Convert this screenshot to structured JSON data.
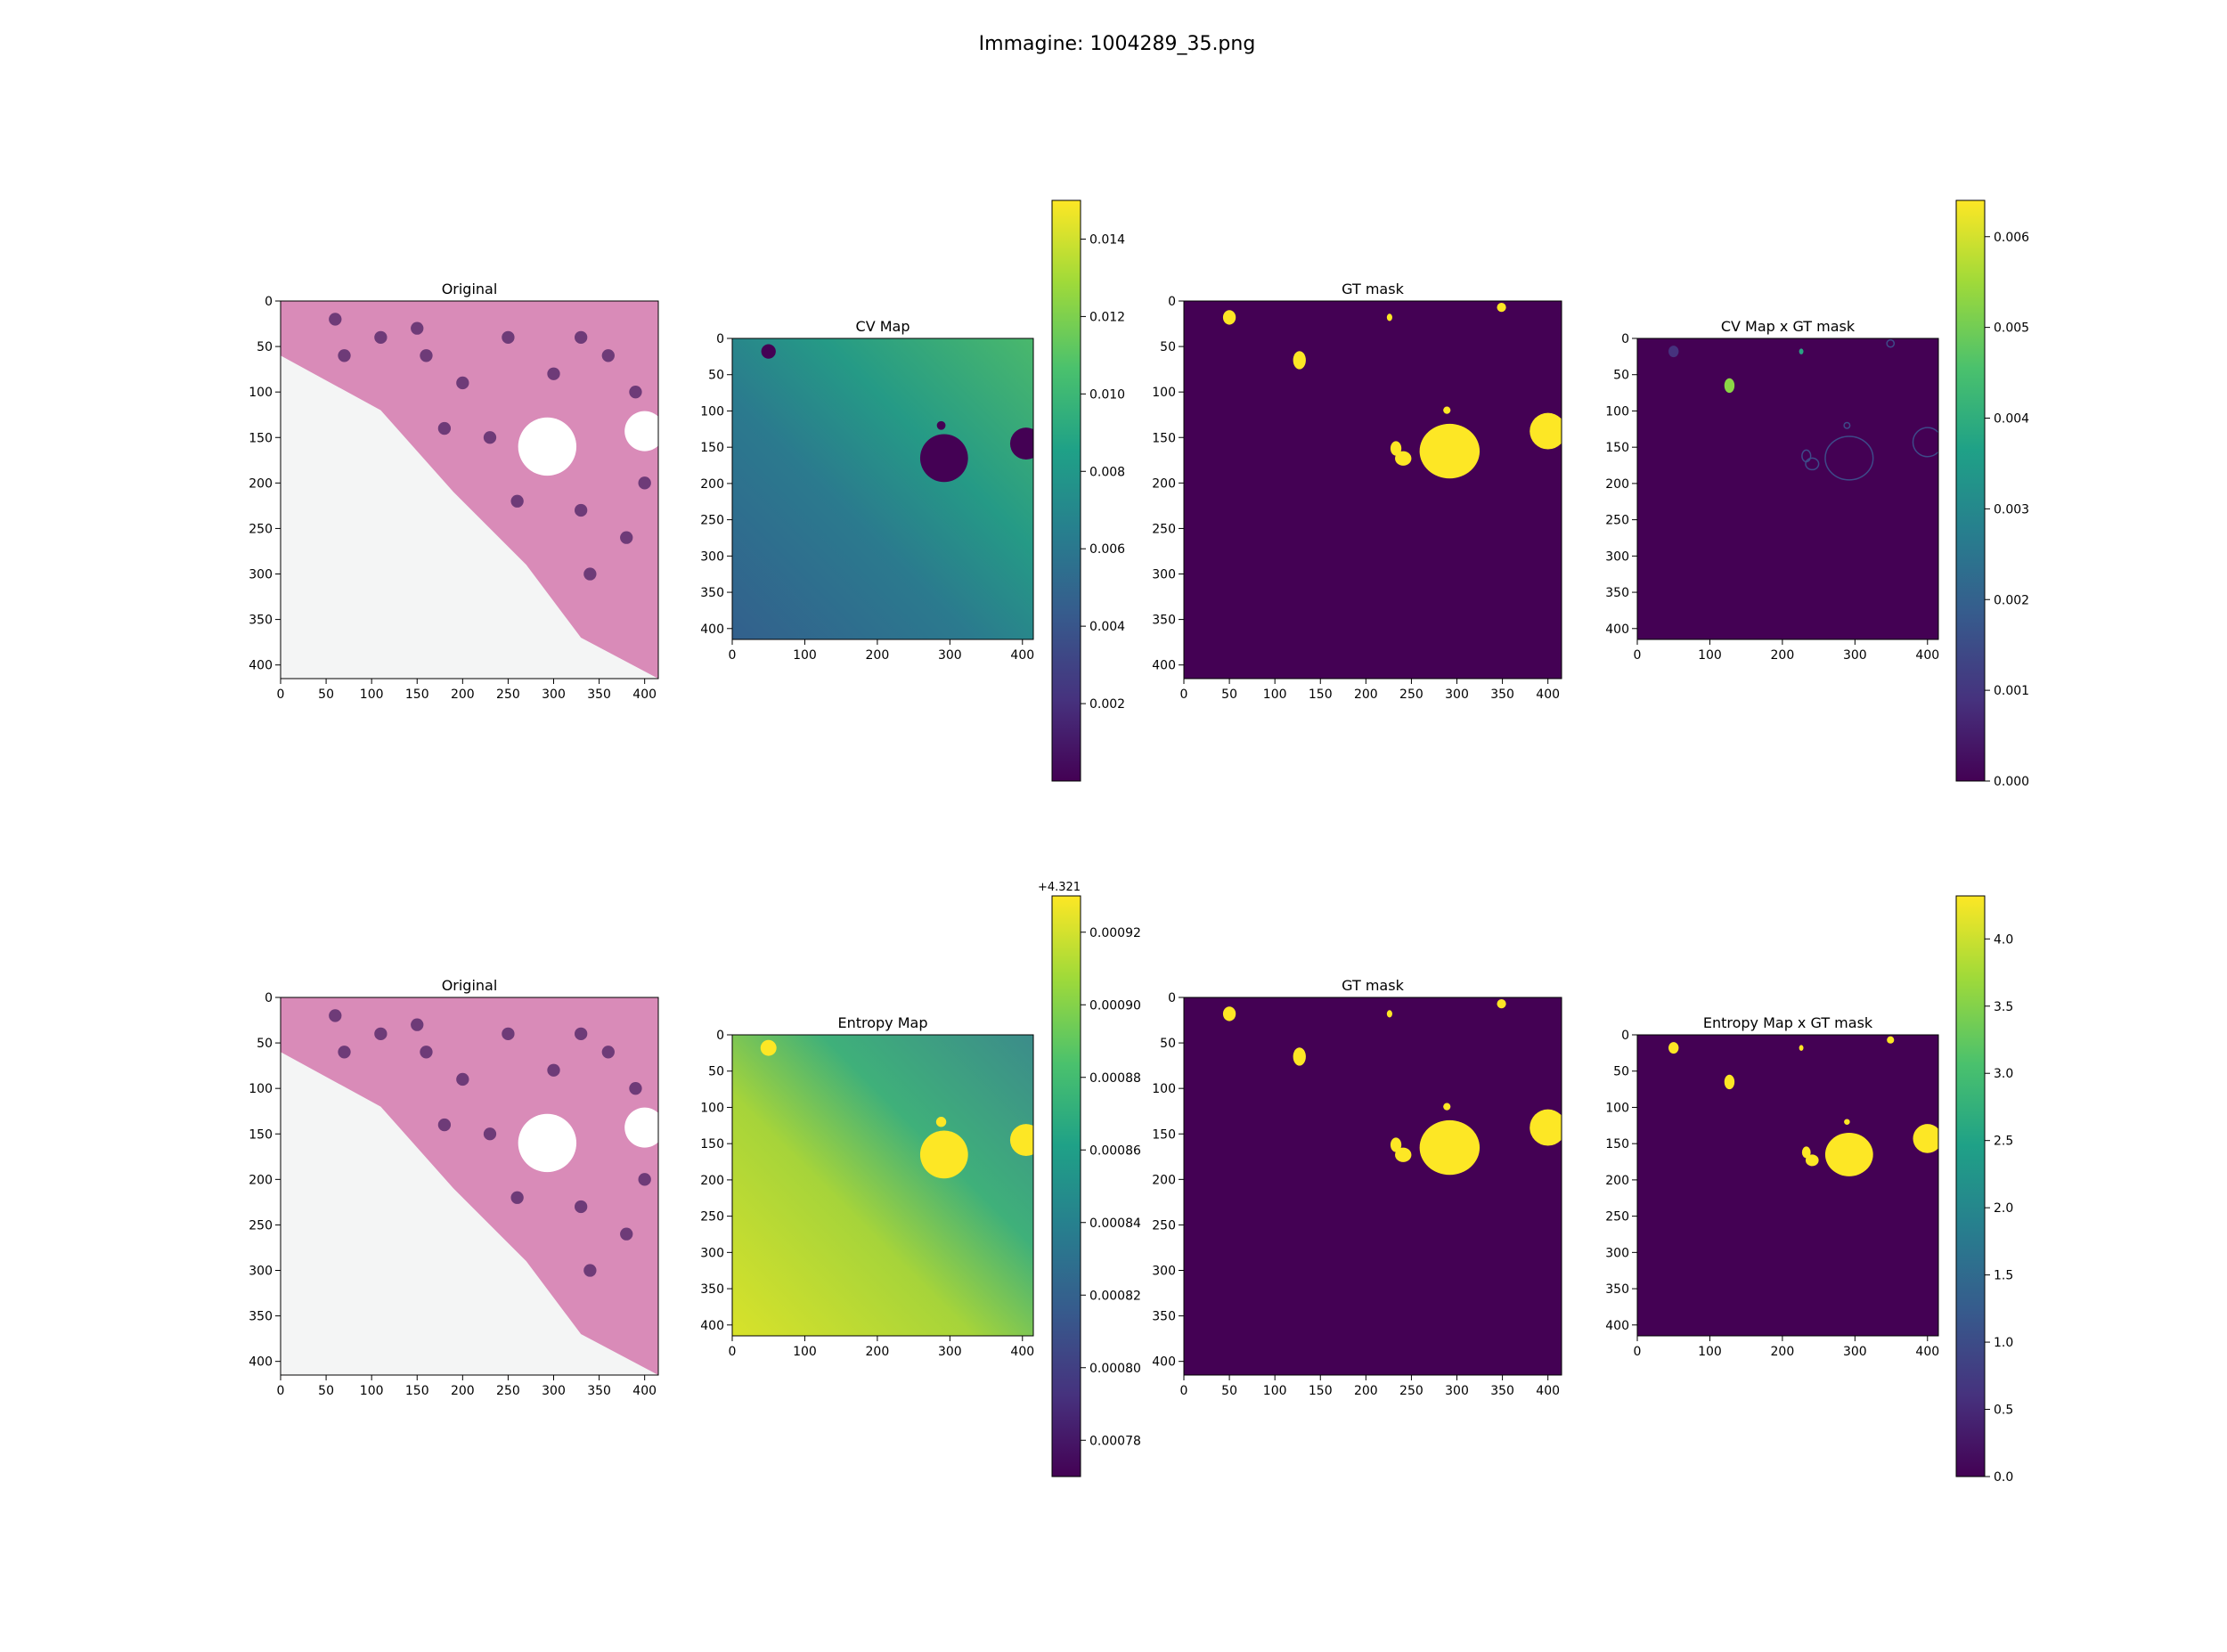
{
  "figure": {
    "suptitle": "Immagine: 1004289_35.png"
  },
  "colors": {
    "viridis_low": "#440154",
    "viridis_high": "#fde725",
    "tissue_pink": "#d98bb8",
    "background_white": "#f4f5f5",
    "nucleus_purple": "#6e3b78"
  },
  "chart_data": [
    {
      "type": "heatmap",
      "title": "Original",
      "content": "H&E histology tile",
      "xlim": [
        0,
        415
      ],
      "ylim": [
        415,
        0
      ],
      "xticks": [
        "0",
        "50",
        "100",
        "150",
        "200",
        "250",
        "300",
        "350",
        "400"
      ],
      "yticks": [
        "0",
        "50",
        "100",
        "150",
        "200",
        "250",
        "300",
        "350",
        "400"
      ]
    },
    {
      "type": "heatmap",
      "title": "CV Map",
      "colormap": "viridis",
      "xlim": [
        0,
        415
      ],
      "ylim": [
        415,
        0
      ],
      "xticks": [
        "0",
        "100",
        "200",
        "300",
        "400"
      ],
      "yticks": [
        "0",
        "50",
        "100",
        "150",
        "200",
        "250",
        "300",
        "350",
        "400"
      ],
      "colorbar": {
        "range": [
          0.0,
          0.015
        ],
        "ticks": [
          "0.002",
          "0.004",
          "0.006",
          "0.008",
          "0.010",
          "0.012",
          "0.014"
        ]
      }
    },
    {
      "type": "heatmap",
      "title": "GT mask",
      "colormap": "viridis",
      "xlim": [
        0,
        415
      ],
      "ylim": [
        415,
        0
      ],
      "xticks": [
        "0",
        "50",
        "100",
        "150",
        "200",
        "250",
        "300",
        "350",
        "400"
      ],
      "yticks": [
        "0",
        "50",
        "100",
        "150",
        "200",
        "250",
        "300",
        "350",
        "400"
      ]
    },
    {
      "type": "heatmap",
      "title": "CV Map x GT mask",
      "colormap": "viridis",
      "xlim": [
        0,
        415
      ],
      "ylim": [
        415,
        0
      ],
      "xticks": [
        "0",
        "100",
        "200",
        "300",
        "400"
      ],
      "yticks": [
        "0",
        "50",
        "100",
        "150",
        "200",
        "250",
        "300",
        "350",
        "400"
      ],
      "colorbar": {
        "range": [
          0.0,
          0.0064
        ],
        "ticks": [
          "0.000",
          "0.001",
          "0.002",
          "0.003",
          "0.004",
          "0.005",
          "0.006"
        ]
      }
    },
    {
      "type": "heatmap",
      "title": "Original",
      "content": "H&E histology tile",
      "xlim": [
        0,
        415
      ],
      "ylim": [
        415,
        0
      ],
      "xticks": [
        "0",
        "50",
        "100",
        "150",
        "200",
        "250",
        "300",
        "350",
        "400"
      ],
      "yticks": [
        "0",
        "50",
        "100",
        "150",
        "200",
        "250",
        "300",
        "350",
        "400"
      ]
    },
    {
      "type": "heatmap",
      "title": "Entropy Map",
      "colormap": "viridis",
      "xlim": [
        0,
        415
      ],
      "ylim": [
        415,
        0
      ],
      "xticks": [
        "0",
        "100",
        "200",
        "300",
        "400"
      ],
      "yticks": [
        "0",
        "50",
        "100",
        "150",
        "200",
        "250",
        "300",
        "350",
        "400"
      ],
      "colorbar": {
        "offset_label": "+4.321",
        "range": [
          0.00077,
          0.00093
        ],
        "ticks": [
          "0.00078",
          "0.00080",
          "0.00082",
          "0.00084",
          "0.00086",
          "0.00088",
          "0.00090",
          "0.00092"
        ]
      }
    },
    {
      "type": "heatmap",
      "title": "GT mask",
      "colormap": "viridis",
      "xlim": [
        0,
        415
      ],
      "ylim": [
        415,
        0
      ],
      "xticks": [
        "0",
        "50",
        "100",
        "150",
        "200",
        "250",
        "300",
        "350",
        "400"
      ],
      "yticks": [
        "0",
        "50",
        "100",
        "150",
        "200",
        "250",
        "300",
        "350",
        "400"
      ]
    },
    {
      "type": "heatmap",
      "title": "Entropy Map x GT mask",
      "colormap": "viridis",
      "xlim": [
        0,
        415
      ],
      "ylim": [
        415,
        0
      ],
      "xticks": [
        "0",
        "100",
        "200",
        "300",
        "400"
      ],
      "yticks": [
        "0",
        "50",
        "100",
        "150",
        "200",
        "250",
        "300",
        "350",
        "400"
      ],
      "colorbar": {
        "range": [
          0.0,
          4.32
        ],
        "ticks": [
          "0.0",
          "0.5",
          "1.0",
          "1.5",
          "2.0",
          "2.5",
          "3.0",
          "3.5",
          "4.0"
        ]
      }
    }
  ]
}
